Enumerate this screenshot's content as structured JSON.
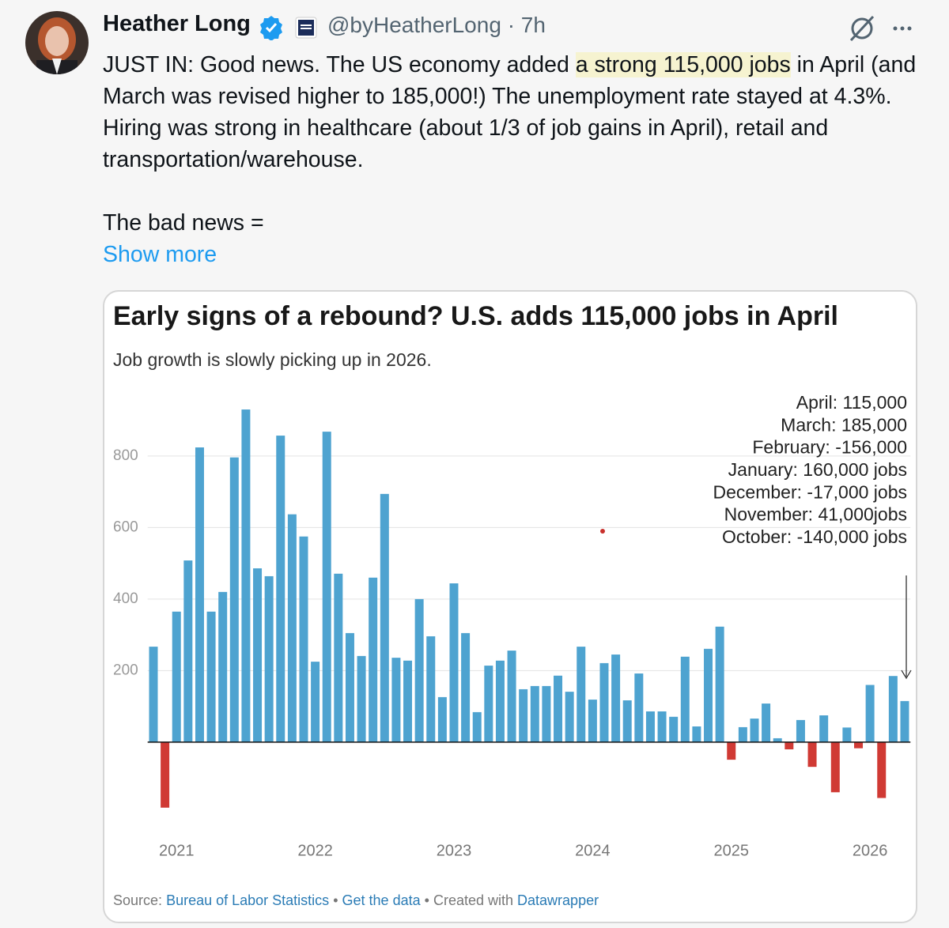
{
  "tweet": {
    "author": "Heather Long",
    "handle": "@byHeatherLong",
    "separator": "·",
    "time": "7h",
    "text_before": "JUST IN: Good news. The US economy added ",
    "text_highlight": "a strong 115,000 jobs",
    "text_after": " in April (and March was revised higher to 185,000!) The unemployment rate stayed at 4.3%. Hiring was strong in healthcare (about 1/3 of job gains in April), retail and transportation/warehouse.",
    "text_second": "The bad news =",
    "show_more": "Show more"
  },
  "chart_data": {
    "type": "bar",
    "title": "Early signs of a rebound? U.S. adds 115,000 jobs in April",
    "subtitle": "Job growth is slowly picking up in 2026.",
    "categories": [
      null,
      null,
      "2021",
      null,
      null,
      null,
      null,
      null,
      null,
      null,
      null,
      null,
      null,
      null,
      "2022",
      null,
      null,
      null,
      null,
      null,
      null,
      null,
      null,
      null,
      null,
      null,
      "2023",
      null,
      null,
      null,
      null,
      null,
      null,
      null,
      null,
      null,
      null,
      null,
      "2024",
      null,
      null,
      null,
      null,
      null,
      null,
      null,
      null,
      null,
      null,
      null,
      "2025",
      null,
      null,
      null,
      null,
      null,
      null,
      null,
      null,
      null,
      null,
      null,
      "2026",
      null,
      null,
      null
    ],
    "values": [
      267,
      -183,
      365,
      508,
      824,
      365,
      420,
      796,
      930,
      486,
      464,
      857,
      637,
      575,
      225,
      868,
      471,
      305,
      241,
      460,
      694,
      236,
      228,
      400,
      296,
      126,
      444,
      305,
      84,
      214,
      228,
      256,
      148,
      157,
      157,
      186,
      141,
      267,
      119,
      221,
      245,
      117,
      192,
      86,
      86,
      71,
      239,
      44,
      261,
      323,
      -49,
      42,
      66,
      108,
      11,
      -20,
      62,
      -69,
      75,
      -140,
      41,
      -17,
      160,
      -156,
      185,
      115
    ],
    "color": "#4ea3d0",
    "negative_color": "#d03a34",
    "ylim": [
      -260,
      950
    ],
    "yticks": [
      200,
      400,
      600,
      800
    ],
    "grid": true,
    "annotations": [
      "April: 115,000",
      "March: 185,000",
      "February: -156,000",
      "January: 160,000 jobs",
      "December: -17,000 jobs",
      "November: 41,000jobs",
      "October: -140,000 jobs"
    ],
    "source_label": "Source:",
    "source": "Bureau of Labor Statistics",
    "dot": "•",
    "get_data": "Get the data",
    "created_with": "Created with",
    "tool": "Datawrapper"
  }
}
